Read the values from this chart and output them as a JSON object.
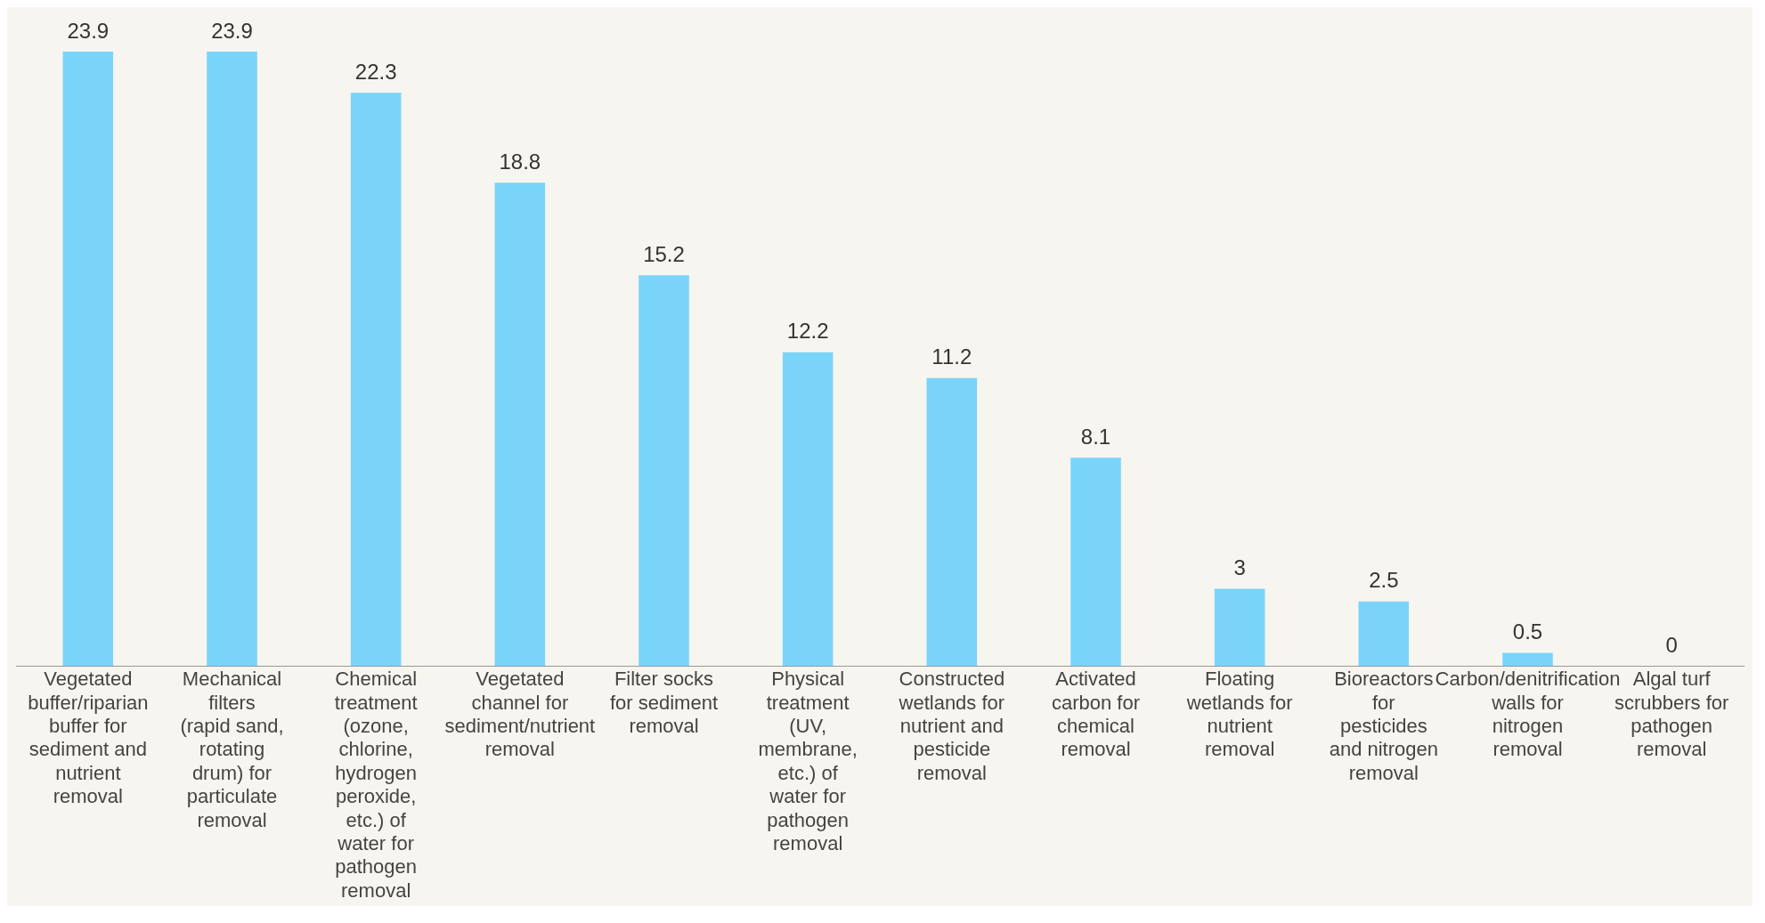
{
  "chart_data": {
    "type": "bar",
    "categories": [
      "Vegetated buffer/riparian buffer for sediment and nutrient removal",
      "Mechanical filters (rapid sand, rotating drum) for particulate removal",
      "Chemical treatment (ozone, chlorine, hydrogen peroxide, etc.) of water for pathogen removal",
      "Vegetated channel for sediment/nutrient removal",
      "Filter socks for sediment removal",
      "Physical treatment (UV, membrane, etc.) of water for pathogen removal",
      "Constructed wetlands for nutrient and pesticide removal",
      "Activated carbon for chemical removal",
      "Floating wetlands for nutrient removal",
      "Bioreactors for pesticides and nitrogen removal",
      "Carbon/denitrification walls for nitrogen removal",
      "Algal turf scrubbers for pathogen removal"
    ],
    "values": [
      23.9,
      23.9,
      22.3,
      18.8,
      15.2,
      12.2,
      11.2,
      8.1,
      3,
      2.5,
      0.5,
      0
    ],
    "color": "#7ad4fa",
    "data_labels": true,
    "grid": false,
    "legend": false
  }
}
